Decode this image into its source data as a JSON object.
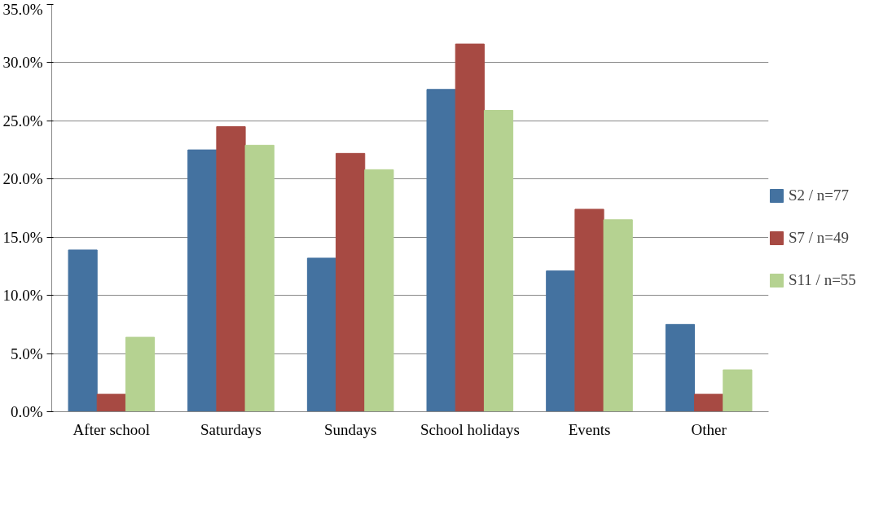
{
  "chart_data": {
    "type": "bar",
    "categories": [
      "After school",
      "Saturdays",
      "Sundays",
      "School holidays",
      "Events",
      "Other"
    ],
    "series": [
      {
        "name": "S2 / n=77",
        "color": "#4472a0",
        "values": [
          13.9,
          22.5,
          13.2,
          27.7,
          12.1,
          7.5
        ]
      },
      {
        "name": "S7 / n=49",
        "color": "#a74a43",
        "values": [
          1.5,
          24.5,
          22.2,
          31.6,
          17.4,
          1.5
        ]
      },
      {
        "name": "S11 / n=55",
        "color": "#b5d291",
        "values": [
          6.4,
          22.9,
          20.8,
          25.9,
          16.5,
          3.6
        ]
      }
    ],
    "ylim": [
      0,
      35
    ],
    "yticks": [
      {
        "value": 0,
        "label": "0.0%"
      },
      {
        "value": 5,
        "label": "5.0%"
      },
      {
        "value": 10,
        "label": "10.0%"
      },
      {
        "value": 15,
        "label": "15.0%"
      },
      {
        "value": 20,
        "label": "20.0%"
      },
      {
        "value": 25,
        "label": "25.0%"
      },
      {
        "value": 30,
        "label": "30.0%"
      },
      {
        "value": 35,
        "label": "35.0%"
      }
    ],
    "grid": "y",
    "legend": "right"
  }
}
